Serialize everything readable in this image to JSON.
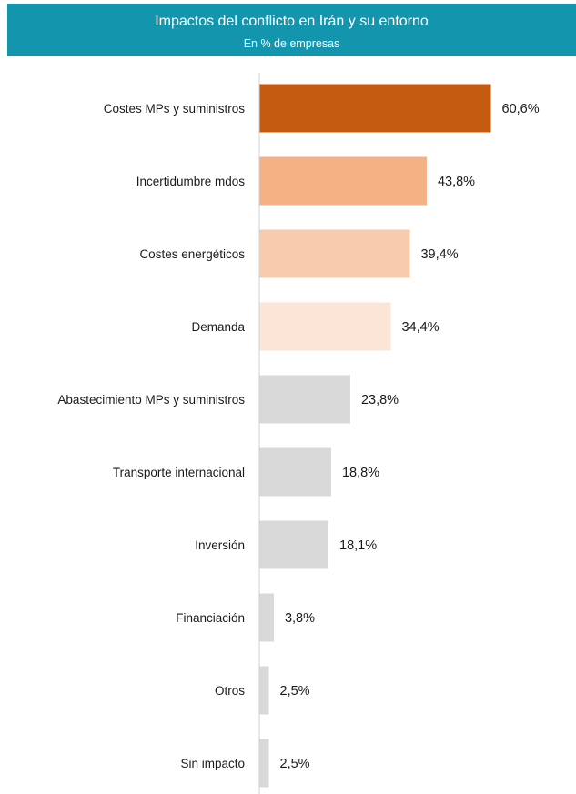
{
  "chart_data": {
    "type": "bar",
    "orientation": "horizontal",
    "title": "Impactos del conflicto en Irán y su entorno",
    "subtitle": "En % de empresas",
    "categories": [
      "Costes MPs y suministros",
      "Incertidumbre mdos",
      "Costes energéticos",
      "Demanda",
      "Abastecimiento MPs y suministros",
      "Transporte internacional",
      "Inversión",
      "Financiación",
      "Otros",
      "Sin impacto"
    ],
    "values": [
      60.6,
      43.8,
      39.4,
      34.4,
      23.8,
      18.8,
      18.1,
      3.8,
      2.5,
      2.5
    ],
    "value_labels": [
      "60,6%",
      "43,8%",
      "39,4%",
      "34,4%",
      "23,8%",
      "18,8%",
      "18,1%",
      "3,8%",
      "2,5%",
      "2,5%"
    ],
    "bar_colors": [
      "#c55a11",
      "#f4b183",
      "#f8cbad",
      "#fbe5d6",
      "#d9d9d9",
      "#d9d9d9",
      "#d9d9d9",
      "#d9d9d9",
      "#d9d9d9",
      "#d9d9d9"
    ],
    "xlim": [
      0,
      100
    ],
    "grid": false,
    "legend": "none",
    "header_color": "#1295ad"
  }
}
